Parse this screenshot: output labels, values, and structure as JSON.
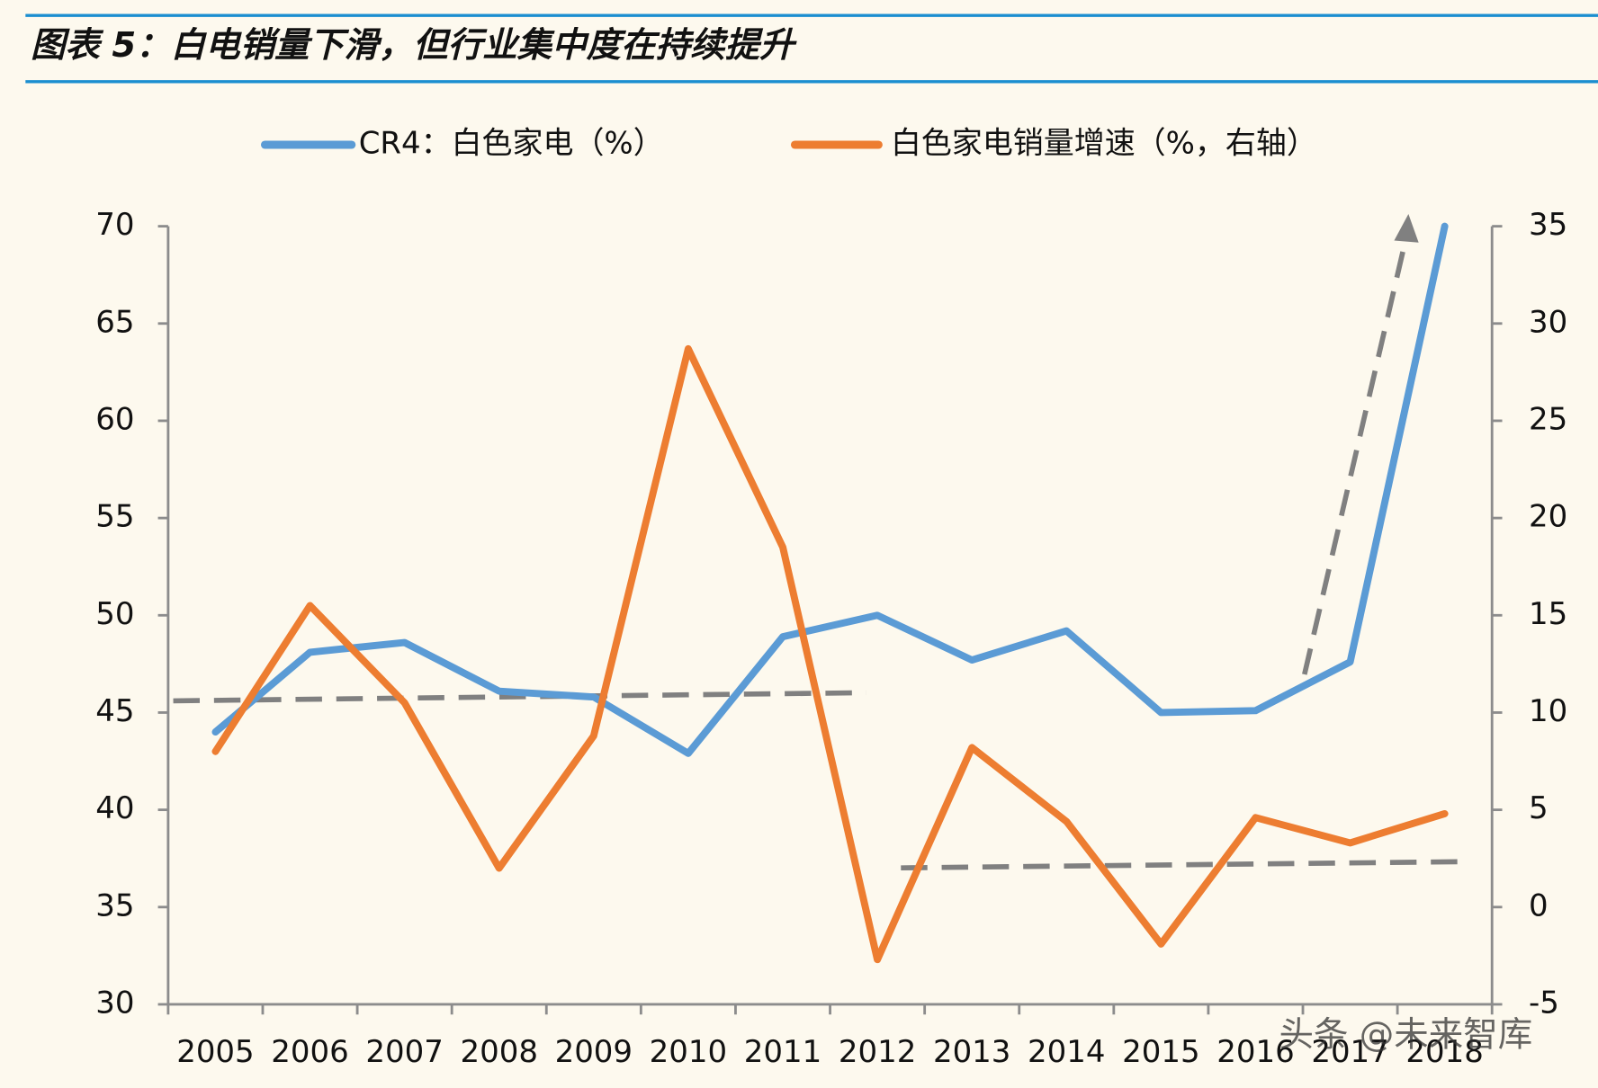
{
  "chart_data": {
    "type": "line",
    "title": "图表 5：白电销量下滑，但行业集中度在持续提升",
    "categories": [
      "2005",
      "2006",
      "2007",
      "2008",
      "2009",
      "2010",
      "2011",
      "2012",
      "2013",
      "2014",
      "2015",
      "2016",
      "2017",
      "2018"
    ],
    "series": [
      {
        "name": "CR4：白色家电（%）",
        "color": "#5b9bd5",
        "values": [
          44.0,
          48.1,
          48.6,
          46.1,
          45.8,
          42.9,
          48.9,
          50.0,
          47.7,
          49.2,
          45.0,
          45.1,
          47.6,
          70
        ]
      },
      {
        "name": "白色家电销量增速（%，右轴）",
        "color": "#ed7d31",
        "axis": "y2",
        "values": [
          8.0,
          15.5,
          10.5,
          2.0,
          8.8,
          28.7,
          18.5,
          -2.7,
          8.2,
          4.4,
          -1.9,
          4.6,
          3.3,
          4.8
        ]
      }
    ],
    "ylim": [
      30,
      70
    ],
    "yticks": [
      30,
      35,
      40,
      45,
      50,
      55,
      60,
      65,
      70
    ],
    "y2lim": [
      -5,
      35
    ],
    "y2ticks": [
      -5,
      0,
      5,
      10,
      15,
      20,
      25,
      30,
      35
    ],
    "grid": false
  },
  "watermark": "头条 @未来智库"
}
